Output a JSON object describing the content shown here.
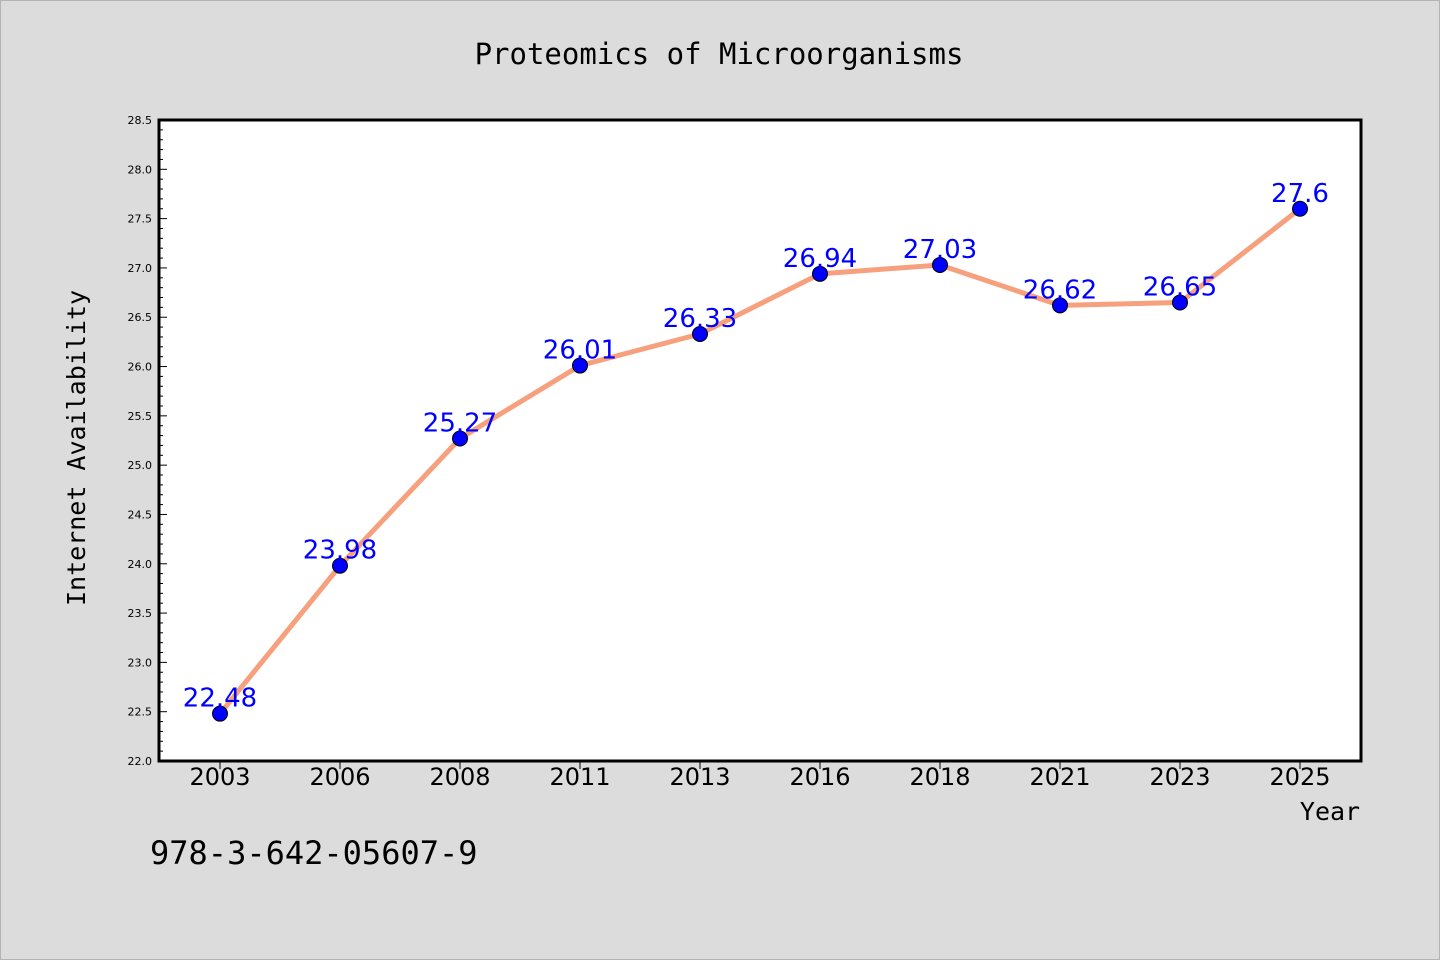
{
  "chart_data": {
    "type": "line",
    "title": "Proteomics of Microorganisms",
    "xlabel": "Year",
    "ylabel": "Internet Availability",
    "categories": [
      "2003",
      "2006",
      "2008",
      "2011",
      "2013",
      "2016",
      "2018",
      "2021",
      "2023",
      "2025"
    ],
    "values": [
      22.48,
      23.98,
      25.27,
      26.01,
      26.33,
      26.94,
      27.03,
      26.62,
      26.65,
      27.6
    ],
    "value_labels": [
      "22.48",
      "23.98",
      "25.27",
      "26.01",
      "26.33",
      "26.94",
      "27.03",
      "26.62",
      "26.65",
      "27.6"
    ],
    "ylim": [
      22.0,
      28.5
    ],
    "yticks": [
      "22.0",
      "22.5",
      "23.0",
      "23.5",
      "24.0",
      "24.5",
      "25.0",
      "25.5",
      "26.0",
      "26.5",
      "27.0",
      "27.5",
      "28.0",
      "28.5"
    ],
    "grid": false,
    "legend": "none",
    "colors": {
      "line": "#f7a07e",
      "marker": "#0000ff",
      "label": "#0000ff"
    }
  },
  "footer": {
    "isbn": "978-3-642-05607-9"
  }
}
